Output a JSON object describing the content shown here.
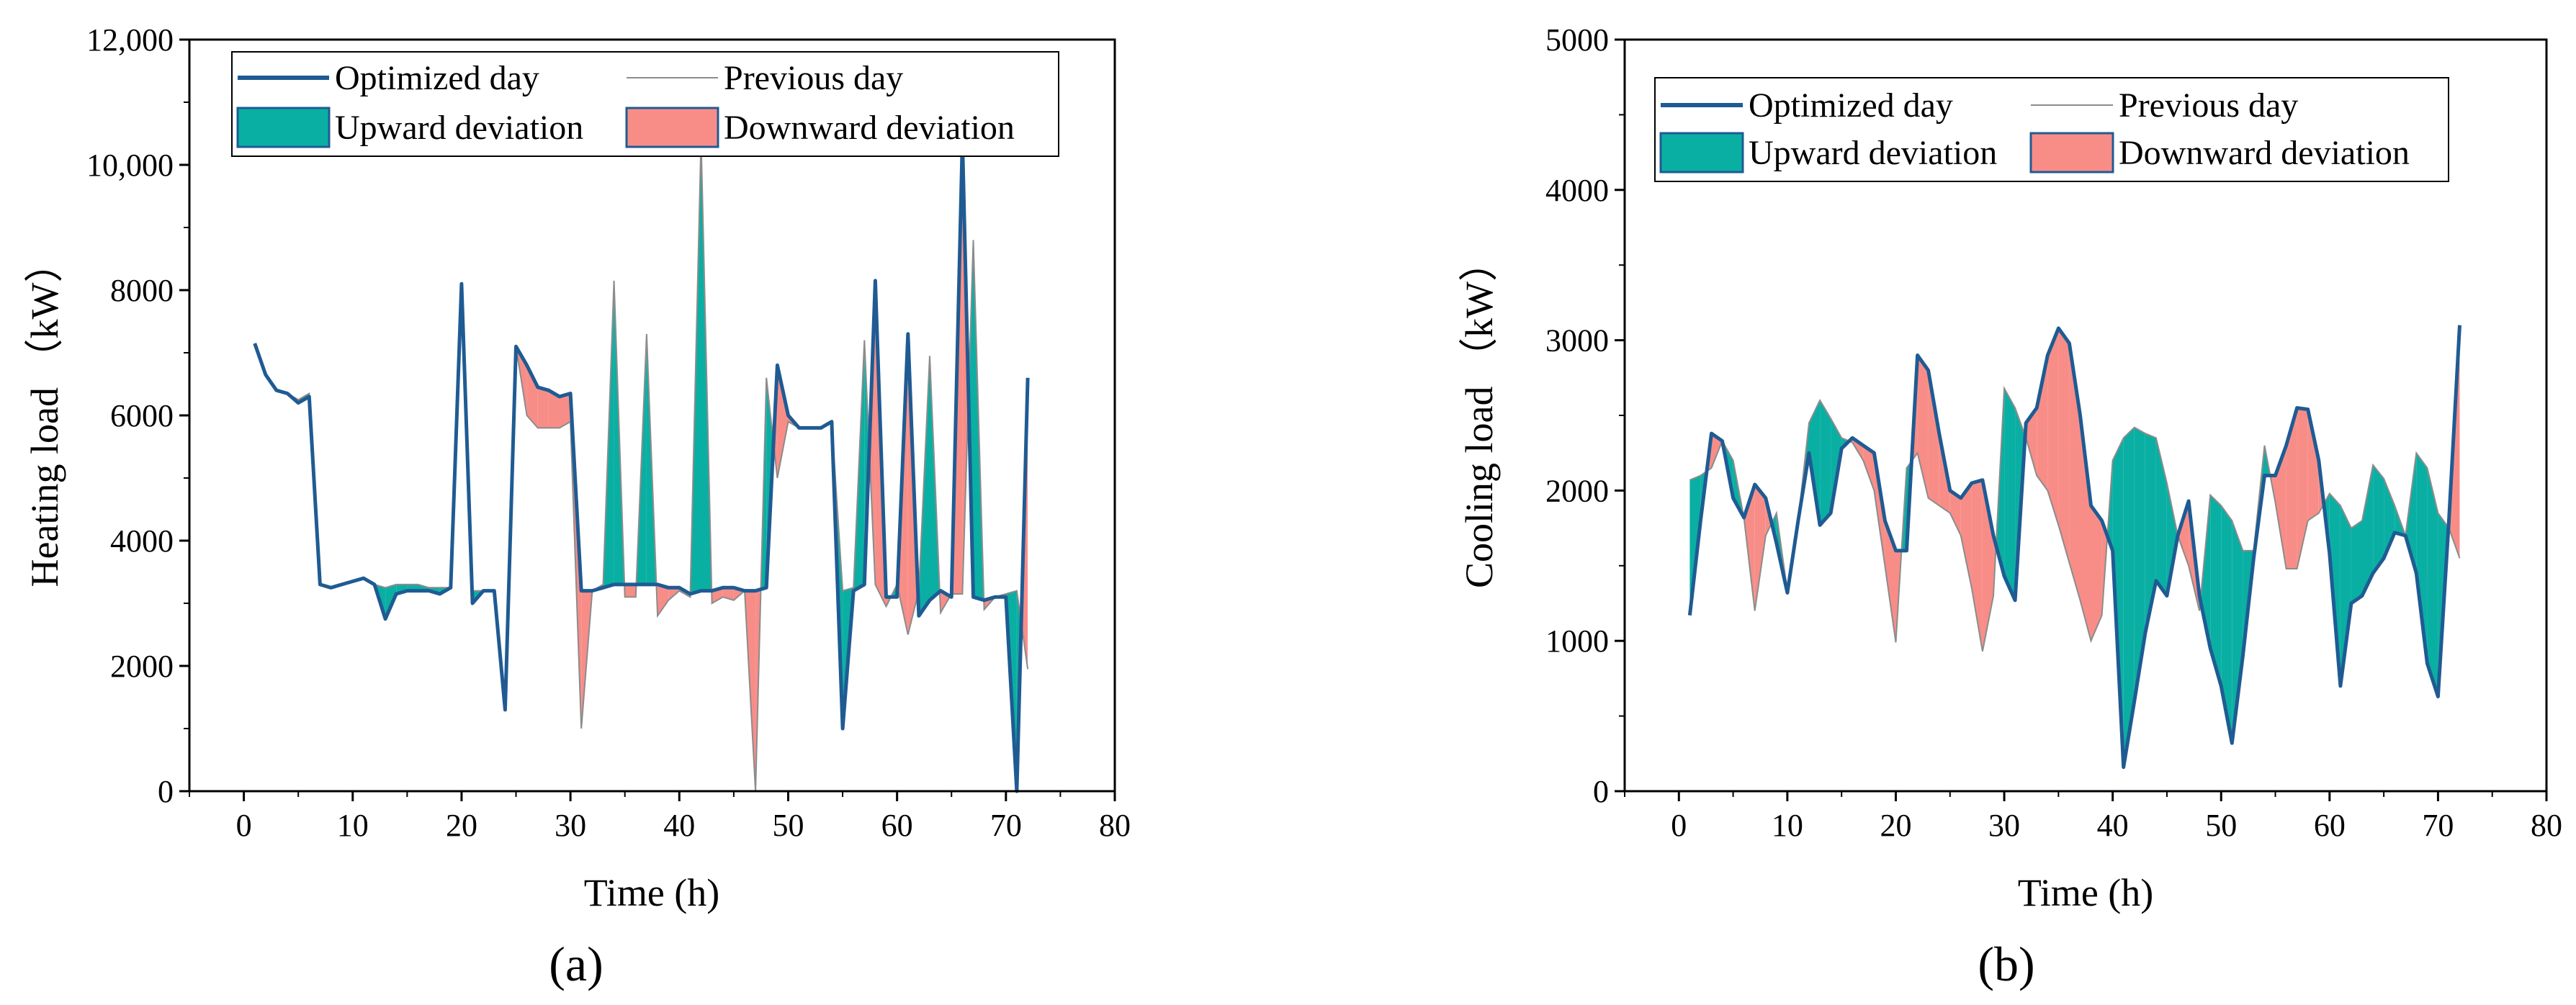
{
  "chart_data": [
    {
      "type": "line",
      "panel_label": "(a)",
      "xlabel": "Time (h)",
      "ylabel": "Heating load （kW）",
      "xlim": [
        -5,
        80
      ],
      "ylim": [
        0,
        12000
      ],
      "xticks": [
        0,
        10,
        20,
        30,
        40,
        50,
        60,
        70,
        80
      ],
      "yticks": [
        0,
        2000,
        4000,
        6000,
        8000,
        10000,
        12000
      ],
      "ytick_labels": [
        "0",
        "2000",
        "4000",
        "6000",
        "8000",
        "10,000",
        "12,000"
      ],
      "legend_position": "top",
      "legend": {
        "optimized": "Optimized day",
        "previous": "Previous day",
        "upward": "Upward deviation",
        "downward": "Downward deviation"
      },
      "x": [
        1,
        2,
        3,
        4,
        5,
        6,
        7,
        8,
        9,
        10,
        11,
        12,
        13,
        14,
        15,
        16,
        17,
        18,
        19,
        20,
        21,
        22,
        23,
        24,
        25,
        26,
        27,
        28,
        29,
        30,
        31,
        32,
        33,
        34,
        35,
        36,
        37,
        38,
        39,
        40,
        41,
        42,
        43,
        44,
        45,
        46,
        47,
        48,
        49,
        50,
        51,
        52,
        53,
        54,
        55,
        56,
        57,
        58,
        59,
        60,
        61,
        62,
        63,
        64,
        65,
        66,
        67,
        68,
        69,
        70,
        71,
        72
      ],
      "series": [
        {
          "name": "Optimized day",
          "values": [
            7150,
            6650,
            6400,
            6350,
            6200,
            6300,
            3300,
            3250,
            3300,
            3350,
            3400,
            3300,
            2750,
            3150,
            3200,
            3200,
            3200,
            3150,
            3250,
            8100,
            3000,
            3200,
            3200,
            1300,
            7100,
            6800,
            6450,
            6400,
            6300,
            6350,
            3200,
            3200,
            3250,
            3300,
            3300,
            3300,
            3300,
            3300,
            3250,
            3250,
            3150,
            3200,
            3200,
            3250,
            3250,
            3200,
            3200,
            3250,
            6800,
            6000,
            5800,
            5800,
            5800,
            5900,
            1000,
            3200,
            3300,
            8150,
            3100,
            3100,
            7300,
            2800,
            3050,
            3200,
            3100,
            10400,
            3100,
            3050,
            3100,
            3100,
            0,
            6600
          ]
        },
        {
          "name": "Previous day",
          "values": [
            7150,
            6650,
            6400,
            6350,
            6250,
            6350,
            3300,
            3250,
            3300,
            3350,
            3400,
            3300,
            3250,
            3300,
            3300,
            3300,
            3250,
            3250,
            3250,
            8100,
            3200,
            3200,
            3200,
            1300,
            7100,
            6000,
            5800,
            5800,
            5800,
            5900,
            1000,
            3200,
            3300,
            8150,
            3100,
            3100,
            7300,
            2800,
            3050,
            3200,
            3100,
            10400,
            3000,
            3100,
            3050,
            3200,
            0,
            6600,
            5000,
            5900,
            5800,
            5800,
            5800,
            5900,
            3200,
            3250,
            7200,
            3300,
            2950,
            3300,
            2500,
            3200,
            6950,
            2850,
            3150,
            3150,
            8800,
            2900,
            3100,
            3150,
            3200,
            1950
          ]
        }
      ]
    },
    {
      "type": "line",
      "panel_label": "(b)",
      "xlabel": "Time (h)",
      "ylabel": "Cooling load （kW）",
      "xlim": [
        -5,
        80
      ],
      "ylim": [
        0,
        5000
      ],
      "xticks": [
        0,
        10,
        20,
        30,
        40,
        50,
        60,
        70,
        80
      ],
      "yticks": [
        0,
        1000,
        2000,
        3000,
        4000,
        5000
      ],
      "ytick_labels": [
        "0",
        "1000",
        "2000",
        "3000",
        "4000",
        "5000"
      ],
      "legend_position": "top",
      "legend": {
        "optimized": "Optimized day",
        "previous": "Previous day",
        "upward": "Upward deviation",
        "downward": "Downward deviation"
      },
      "x": [
        1,
        2,
        3,
        4,
        5,
        6,
        7,
        8,
        9,
        10,
        11,
        12,
        13,
        14,
        15,
        16,
        17,
        18,
        19,
        20,
        21,
        22,
        23,
        24,
        25,
        26,
        27,
        28,
        29,
        30,
        31,
        32,
        33,
        34,
        35,
        36,
        37,
        38,
        39,
        40,
        41,
        42,
        43,
        44,
        45,
        46,
        47,
        48,
        49,
        50,
        51,
        52,
        53,
        54,
        55,
        56,
        57,
        58,
        59,
        60,
        61,
        62,
        63,
        64,
        65,
        66,
        67,
        68,
        69,
        70,
        71,
        72
      ],
      "series": [
        {
          "name": "Optimized day",
          "values": [
            1170,
            1800,
            2380,
            2330,
            1950,
            1820,
            2040,
            1950,
            1650,
            1320,
            1800,
            2250,
            1770,
            1850,
            2280,
            2350,
            2300,
            2250,
            1800,
            1600,
            1600,
            2900,
            2800,
            2380,
            2000,
            1950,
            2050,
            2070,
            1700,
            1430,
            1270,
            2450,
            2550,
            2900,
            3080,
            2980,
            2500,
            1900,
            1800,
            1600,
            160,
            600,
            1050,
            1400,
            1300,
            1700,
            1930,
            1300,
            950,
            700,
            320,
            900,
            1550,
            2100,
            2100,
            2300,
            2550,
            2540,
            2200,
            1580,
            700,
            1250,
            1300,
            1450,
            1550,
            1720,
            1700,
            1450,
            850,
            630,
            1800,
            3100
          ]
        },
        {
          "name": "Previous day",
          "values": [
            2070,
            2100,
            2150,
            2330,
            2200,
            1820,
            1200,
            1700,
            1850,
            1330,
            1800,
            2450,
            2600,
            2480,
            2350,
            2320,
            2200,
            2000,
            1500,
            990,
            2150,
            2250,
            1950,
            1900,
            1850,
            1700,
            1350,
            930,
            1300,
            2680,
            2550,
            2350,
            2100,
            2000,
            1770,
            1520,
            1270,
            1000,
            1170,
            2200,
            2350,
            2420,
            2380,
            2350,
            2050,
            1700,
            1500,
            1200,
            1970,
            1900,
            1800,
            1600,
            1600,
            2300,
            1920,
            1480,
            1480,
            1800,
            1850,
            1980,
            1900,
            1750,
            1800,
            2170,
            2080,
            1900,
            1700,
            2250,
            2150,
            1850,
            1750,
            1550
          ]
        }
      ]
    }
  ]
}
